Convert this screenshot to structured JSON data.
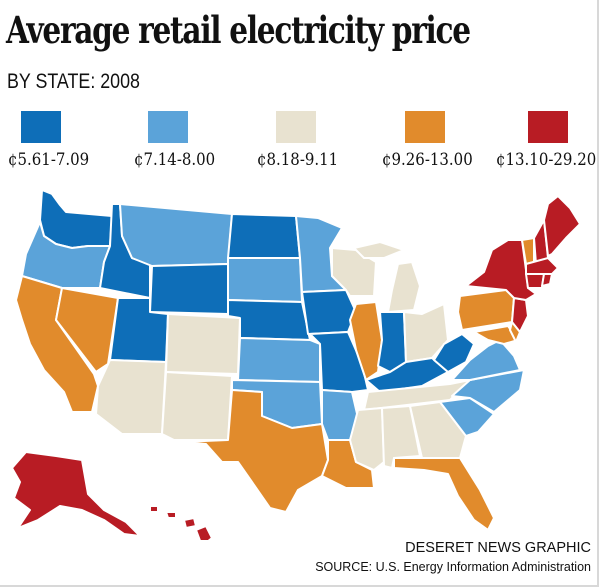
{
  "title": "Average retail electricity price",
  "subtitle": "BY STATE: 2008",
  "legend": [
    {
      "label": "¢5.61-7.09",
      "color": "#0e6eb8"
    },
    {
      "label": "¢7.14-8.00",
      "color": "#5ba3d9"
    },
    {
      "label": "¢8.18-9.11",
      "color": "#e8e2d0"
    },
    {
      "label": "¢9.26-13.00",
      "color": "#e18b2c"
    },
    {
      "label": "¢13.10-29.20",
      "color": "#b81c24"
    }
  ],
  "credit": "DESERET NEWS GRAPHIC",
  "source": "SOURCE: U.S. Energy Information Administration"
}
